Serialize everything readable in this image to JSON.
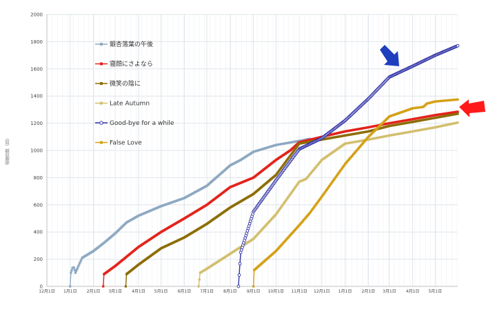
{
  "chart_data": {
    "type": "line",
    "title": "",
    "xlabel": "",
    "ylabel": "視聴回数（回）",
    "ylim": [
      0,
      2000
    ],
    "ytick_step": 200,
    "grid": true,
    "legend_position": "upper-left inside plot",
    "xticks": [
      {
        "label": "12月1日",
        "date": "2019-12-01"
      },
      {
        "label": "1月1日",
        "date": "2020-01-01"
      },
      {
        "label": "2月1日",
        "date": "2020-02-01"
      },
      {
        "label": "3月1日",
        "date": "2020-03-01"
      },
      {
        "label": "4月1日",
        "date": "2020-04-01"
      },
      {
        "label": "5月1日",
        "date": "2020-05-01"
      },
      {
        "label": "6月1日",
        "date": "2020-06-01"
      },
      {
        "label": "7月1日",
        "date": "2020-07-01"
      },
      {
        "label": "8月1日",
        "date": "2020-08-01"
      },
      {
        "label": "9月1日",
        "date": "2020-09-01"
      },
      {
        "label": "10月1日",
        "date": "2020-10-01"
      },
      {
        "label": "11月1日",
        "date": "2020-11-01"
      },
      {
        "label": "12月1日",
        "date": "2020-12-01"
      },
      {
        "label": "1月1日",
        "date": "2021-01-01"
      },
      {
        "label": "2月1日",
        "date": "2021-02-01"
      },
      {
        "label": "3月1日",
        "date": "2021-03-01"
      },
      {
        "label": "4月1日",
        "date": "2021-04-01"
      },
      {
        "label": "5月1日",
        "date": "2021-05-01"
      }
    ],
    "x_range": [
      "2019-12-01",
      "2021-05-31"
    ],
    "series": [
      {
        "name": "銀杏落葉の午後",
        "color": "#8ea9c1",
        "marker": "square",
        "points": [
          [
            "2020-01-01",
            0
          ],
          [
            "2020-01-02",
            100
          ],
          [
            "2020-01-04",
            135
          ],
          [
            "2020-01-06",
            140
          ],
          [
            "2020-01-08",
            100
          ],
          [
            "2020-01-12",
            150
          ],
          [
            "2020-01-17",
            210
          ],
          [
            "2020-02-01",
            260
          ],
          [
            "2020-02-15",
            320
          ],
          [
            "2020-03-01",
            390
          ],
          [
            "2020-03-16",
            470
          ],
          [
            "2020-04-01",
            520
          ],
          [
            "2020-05-01",
            590
          ],
          [
            "2020-06-01",
            650
          ],
          [
            "2020-07-01",
            740
          ],
          [
            "2020-08-01",
            890
          ],
          [
            "2020-08-15",
            930
          ],
          [
            "2020-09-01",
            990
          ],
          [
            "2020-10-01",
            1040
          ],
          [
            "2020-11-01",
            1070
          ],
          [
            "2020-11-15",
            1085
          ]
        ]
      },
      {
        "name": "寝顔にさよなら",
        "color": "#e3231b",
        "marker": "square",
        "points": [
          [
            "2020-02-14",
            0
          ],
          [
            "2020-02-15",
            90
          ],
          [
            "2020-03-01",
            150
          ],
          [
            "2020-04-01",
            290
          ],
          [
            "2020-05-01",
            400
          ],
          [
            "2020-06-01",
            500
          ],
          [
            "2020-07-01",
            600
          ],
          [
            "2020-08-01",
            730
          ],
          [
            "2020-09-01",
            800
          ],
          [
            "2020-10-01",
            930
          ],
          [
            "2020-10-20",
            1000
          ],
          [
            "2020-11-01",
            1060
          ],
          [
            "2020-12-01",
            1100
          ],
          [
            "2021-01-01",
            1140
          ],
          [
            "2021-02-01",
            1170
          ],
          [
            "2021-03-01",
            1200
          ],
          [
            "2021-04-01",
            1230
          ],
          [
            "2021-05-01",
            1260
          ],
          [
            "2021-05-31",
            1285
          ]
        ]
      },
      {
        "name": "微笑の陰に",
        "color": "#8c6d05",
        "marker": "square",
        "points": [
          [
            "2020-03-15",
            0
          ],
          [
            "2020-03-16",
            90
          ],
          [
            "2020-04-01",
            160
          ],
          [
            "2020-05-01",
            280
          ],
          [
            "2020-06-01",
            360
          ],
          [
            "2020-07-01",
            460
          ],
          [
            "2020-08-01",
            580
          ],
          [
            "2020-09-01",
            680
          ],
          [
            "2020-10-01",
            820
          ],
          [
            "2020-11-01",
            1050
          ],
          [
            "2020-12-01",
            1080
          ],
          [
            "2021-01-01",
            1110
          ],
          [
            "2021-02-01",
            1140
          ],
          [
            "2021-03-01",
            1180
          ],
          [
            "2021-04-01",
            1210
          ],
          [
            "2021-05-01",
            1240
          ],
          [
            "2021-05-31",
            1270
          ]
        ]
      },
      {
        "name": "Late Autumn",
        "color": "#d2bf6e",
        "marker": "square",
        "points": [
          [
            "2020-06-20",
            0
          ],
          [
            "2020-06-22",
            100
          ],
          [
            "2020-07-01",
            130
          ],
          [
            "2020-08-01",
            240
          ],
          [
            "2020-09-01",
            350
          ],
          [
            "2020-10-01",
            530
          ],
          [
            "2020-11-01",
            770
          ],
          [
            "2020-11-10",
            790
          ],
          [
            "2020-12-01",
            930
          ],
          [
            "2021-01-01",
            1050
          ],
          [
            "2021-02-01",
            1080
          ],
          [
            "2021-03-01",
            1110
          ],
          [
            "2021-04-01",
            1140
          ],
          [
            "2021-05-01",
            1170
          ],
          [
            "2021-05-31",
            1205
          ]
        ]
      },
      {
        "name": "Good-bye for a while",
        "color": "#2d2fa4",
        "marker": "circle",
        "points": [
          [
            "2020-08-12",
            0
          ],
          [
            "2020-08-15",
            250
          ],
          [
            "2020-09-01",
            550
          ],
          [
            "2020-10-01",
            780
          ],
          [
            "2020-11-01",
            1010
          ],
          [
            "2020-12-01",
            1090
          ],
          [
            "2021-01-01",
            1220
          ],
          [
            "2021-02-01",
            1380
          ],
          [
            "2021-03-01",
            1540
          ],
          [
            "2021-04-01",
            1620
          ],
          [
            "2021-05-01",
            1700
          ],
          [
            "2021-05-31",
            1770
          ]
        ]
      },
      {
        "name": "False Love",
        "color": "#d4a016",
        "marker": "square",
        "points": [
          [
            "2020-09-01",
            0
          ],
          [
            "2020-09-02",
            120
          ],
          [
            "2020-10-01",
            260
          ],
          [
            "2020-11-01",
            450
          ],
          [
            "2020-11-15",
            540
          ],
          [
            "2020-12-01",
            660
          ],
          [
            "2021-01-01",
            900
          ],
          [
            "2021-02-01",
            1100
          ],
          [
            "2021-03-01",
            1250
          ],
          [
            "2021-04-01",
            1310
          ],
          [
            "2021-04-15",
            1320
          ],
          [
            "2021-04-20",
            1345
          ],
          [
            "2021-05-01",
            1360
          ],
          [
            "2021-05-31",
            1375
          ]
        ]
      }
    ],
    "annotations": [
      {
        "type": "arrow",
        "color": "#1f3ebd",
        "direction": "down-right",
        "points_to": "Good-bye for a while"
      },
      {
        "type": "arrow",
        "color": "#ff1a1a",
        "direction": "left",
        "points_to": "寝顔にさよなら"
      }
    ]
  },
  "colors": {
    "grid": "#dfe4ea",
    "axis": "#bfbfbf"
  }
}
